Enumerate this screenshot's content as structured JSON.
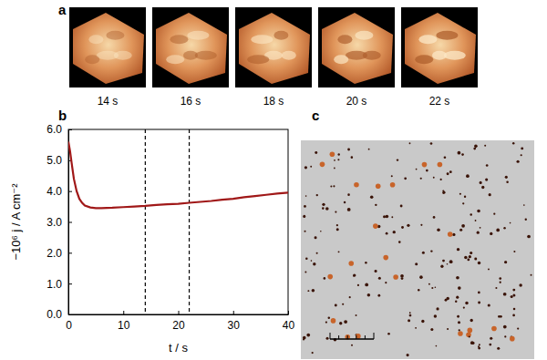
{
  "chart_data": {
    "type": "line",
    "x_label": "t / s",
    "y_label": "−10⁶ j / A cm⁻²",
    "x": [
      0,
      0.3,
      0.6,
      1,
      1.5,
      2,
      2.5,
      3,
      4,
      5,
      6,
      8,
      10,
      12,
      14,
      16,
      18,
      20,
      22,
      24,
      26,
      28,
      30,
      32,
      34,
      36,
      38,
      40
    ],
    "series": [
      {
        "color": "#a01818",
        "values": [
          5.6,
          5.3,
          4.9,
          4.4,
          4.0,
          3.75,
          3.62,
          3.53,
          3.47,
          3.45,
          3.45,
          3.46,
          3.48,
          3.5,
          3.52,
          3.55,
          3.57,
          3.59,
          3.62,
          3.65,
          3.68,
          3.72,
          3.75,
          3.8,
          3.84,
          3.88,
          3.92,
          3.95
        ]
      }
    ],
    "xlim": [
      0,
      40
    ],
    "xticks": [
      0,
      10,
      20,
      30,
      40
    ],
    "ylim": [
      0,
      6
    ],
    "yticks": [
      {
        "value": 0,
        "label": "0.0"
      },
      {
        "value": 1,
        "label": "1.0"
      },
      {
        "value": 2,
        "label": "2.0"
      },
      {
        "value": 3,
        "label": "3.0"
      },
      {
        "value": 4,
        "label": "4.0"
      },
      {
        "value": 5,
        "label": "5.0"
      },
      {
        "value": 6,
        "label": "6.0"
      }
    ],
    "vertical_lines": [
      14,
      22
    ],
    "grid": false
  },
  "panel_labels": [
    "a",
    "b",
    "c"
  ],
  "image_frames": [
    "14 s",
    "16 s",
    "18 s",
    "20 s",
    "22 s"
  ]
}
